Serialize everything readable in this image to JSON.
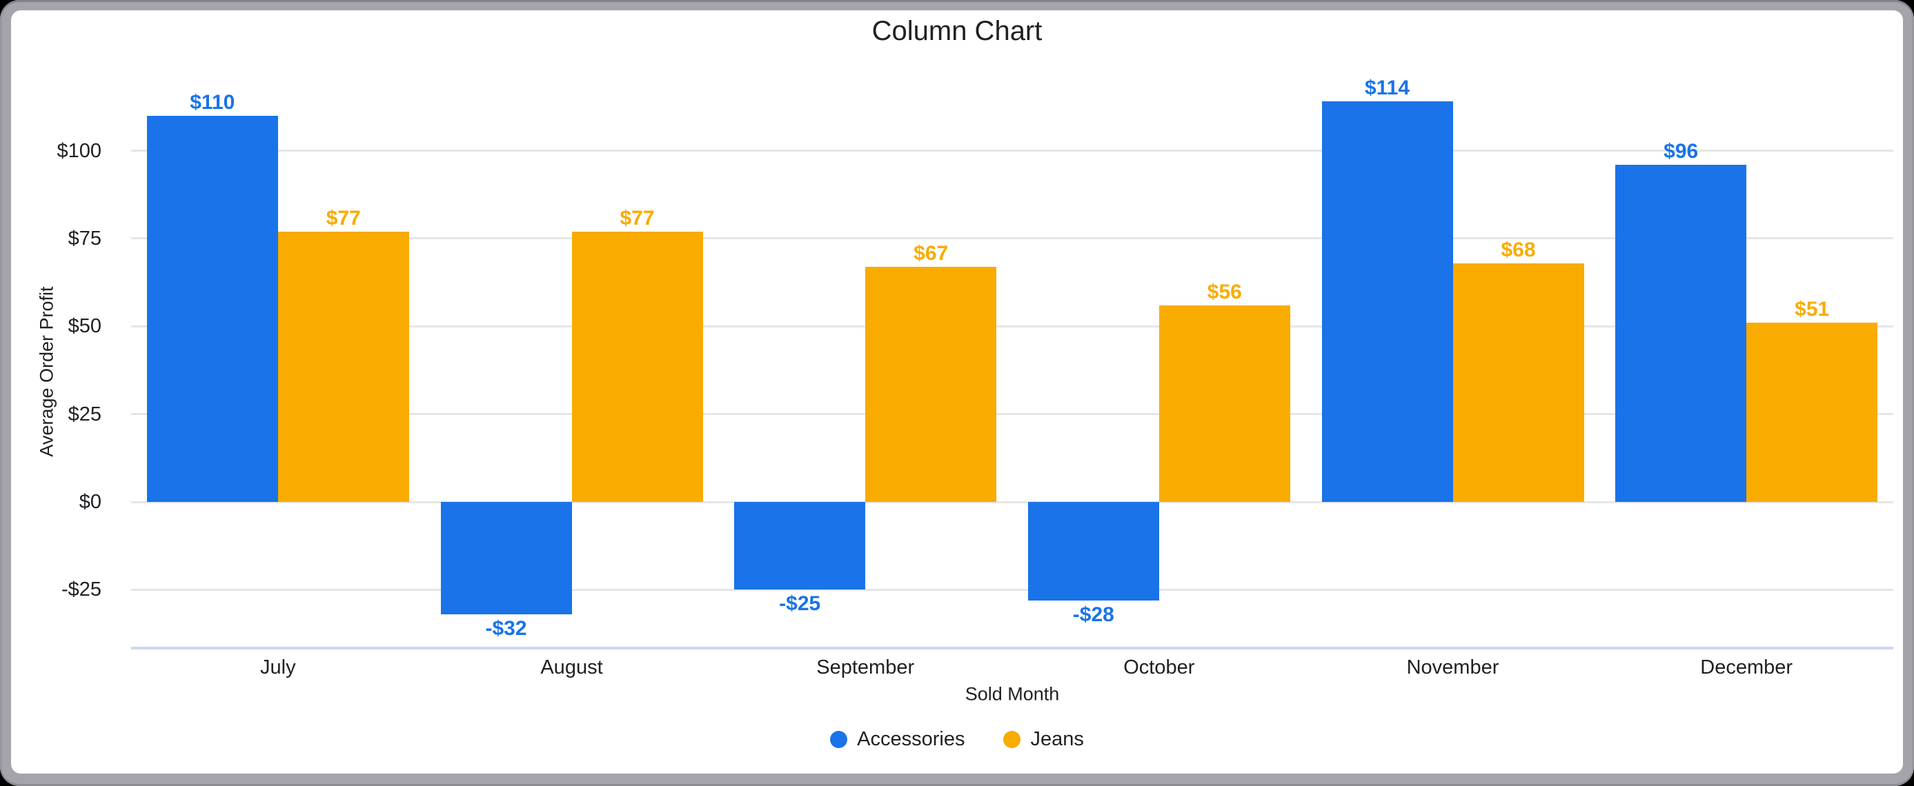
{
  "window": {
    "background": "#000000",
    "card_border_color": "#a4a4aa",
    "card_background": "#ffffff"
  },
  "chart_data": {
    "type": "bar",
    "title": "Column Chart",
    "xlabel": "Sold Month",
    "ylabel": "Average Order Profit",
    "categories": [
      "July",
      "August",
      "September",
      "October",
      "November",
      "December"
    ],
    "series": [
      {
        "name": "Accessories",
        "color": "#1a73e8",
        "values": [
          110,
          -32,
          -25,
          -28,
          114,
          96
        ],
        "labels": [
          "$110",
          "-$32",
          "-$25",
          "-$28",
          "$114",
          "$96"
        ]
      },
      {
        "name": "Jeans",
        "color": "#f9ab00",
        "values": [
          77,
          77,
          67,
          56,
          68,
          51
        ],
        "labels": [
          "$77",
          "$77",
          "$67",
          "$56",
          "$68",
          "$51"
        ]
      }
    ],
    "y_ticks": [
      {
        "value": 100,
        "label": "$100"
      },
      {
        "value": 75,
        "label": "$75"
      },
      {
        "value": 50,
        "label": "$50"
      },
      {
        "value": 25,
        "label": "$25"
      },
      {
        "value": 0,
        "label": "$0"
      },
      {
        "value": -25,
        "label": "-$25"
      }
    ],
    "ylim": [
      -41.6,
      115.8
    ],
    "grid": true,
    "grid_color": "#e6e6e6",
    "axis_line_color": "#ccd9ef",
    "text_color": "#202124",
    "legend_position": "bottom"
  }
}
